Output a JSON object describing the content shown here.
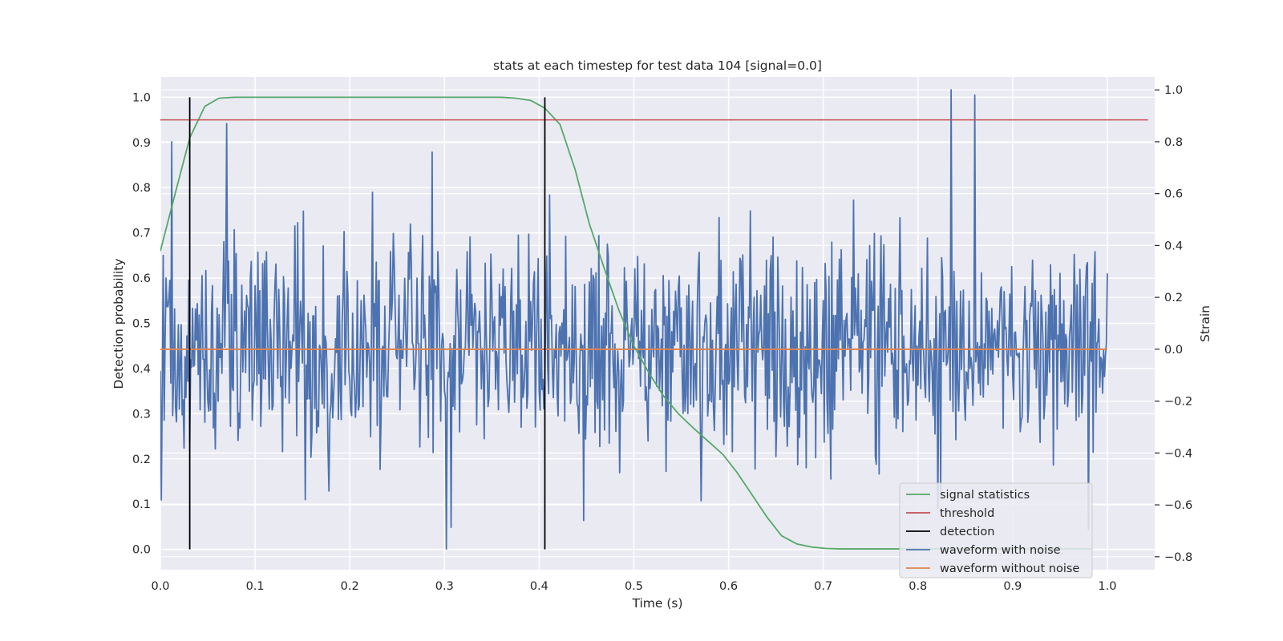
{
  "chart_data": {
    "type": "line",
    "title": "stats at each timestep for test data 104 [signal=0.0]",
    "xlabel": "Time (s)",
    "ylabel": "Detection probability",
    "y2label": "Strain",
    "xlim": [
      0.0,
      1.05
    ],
    "ylim": [
      -0.045,
      1.045
    ],
    "y2lim": [
      -0.85,
      1.05
    ],
    "x_ticks": [
      "0.0",
      "0.1",
      "0.2",
      "0.3",
      "0.4",
      "0.5",
      "0.6",
      "0.7",
      "0.8",
      "0.9",
      "1.0"
    ],
    "y_ticks": [
      "0.0",
      "0.1",
      "0.2",
      "0.3",
      "0.4",
      "0.5",
      "0.6",
      "0.7",
      "0.8",
      "0.9",
      "1.0"
    ],
    "y2_ticks": [
      "−0.8",
      "−0.6",
      "−0.4",
      "−0.2",
      "0.0",
      "0.2",
      "0.4",
      "0.6",
      "0.8",
      "1.0"
    ],
    "grid": true,
    "legend_position": "lower-right",
    "background": "#eaeaf2",
    "series": [
      {
        "name": "signal statistics",
        "axis": "left",
        "color": "#55a868",
        "x": [
          0.0,
          0.016,
          0.031,
          0.047,
          0.062,
          0.078,
          0.094,
          0.2,
          0.3,
          0.36,
          0.375,
          0.391,
          0.406,
          0.422,
          0.438,
          0.453,
          0.469,
          0.484,
          0.5,
          0.516,
          0.531,
          0.547,
          0.562,
          0.578,
          0.594,
          0.609,
          0.625,
          0.641,
          0.656,
          0.672,
          0.688,
          0.703,
          0.719,
          0.75,
          0.8,
          0.9,
          0.984
        ],
        "y": [
          0.66,
          0.79,
          0.91,
          0.98,
          0.998,
          1.0,
          1.0,
          1.0,
          1.0,
          1.0,
          0.998,
          0.993,
          0.976,
          0.94,
          0.84,
          0.72,
          0.62,
          0.53,
          0.45,
          0.39,
          0.34,
          0.3,
          0.27,
          0.24,
          0.21,
          0.17,
          0.12,
          0.07,
          0.03,
          0.012,
          0.005,
          0.002,
          0.001,
          0.001,
          0.001,
          0.001,
          0.001
        ]
      },
      {
        "name": "threshold",
        "axis": "left",
        "color": "#c44e52",
        "x": [
          0.0,
          1.043
        ],
        "y": [
          0.95,
          0.95
        ]
      },
      {
        "name": "detection",
        "axis": "left",
        "color": "#000000",
        "segments": [
          {
            "x": 0.031,
            "y_from": 0.0,
            "y_to": 1.0
          },
          {
            "x": 0.406,
            "y_from": 0.0,
            "y_to": 1.0
          }
        ]
      },
      {
        "name": "waveform with noise",
        "axis": "right",
        "color": "#4c72b0",
        "x_start": 0.0,
        "x_end": 1.0,
        "noise_sigma": 0.22,
        "noise_seed": 104,
        "n_points": 1001,
        "y_min": -0.77,
        "y_max": 1.0,
        "peaks": [
          {
            "x": 0.012,
            "y": 0.8
          },
          {
            "x": 0.07,
            "y": 0.87
          },
          {
            "x": 0.287,
            "y": 0.76
          },
          {
            "x": 0.302,
            "y": -0.77
          },
          {
            "x": 0.835,
            "y": 1.0
          },
          {
            "x": 0.86,
            "y": 0.98
          }
        ]
      },
      {
        "name": "waveform without noise",
        "axis": "right",
        "color": "#dd8452",
        "x": [
          0.0,
          1.0
        ],
        "y": [
          0.0,
          0.0
        ]
      }
    ]
  }
}
